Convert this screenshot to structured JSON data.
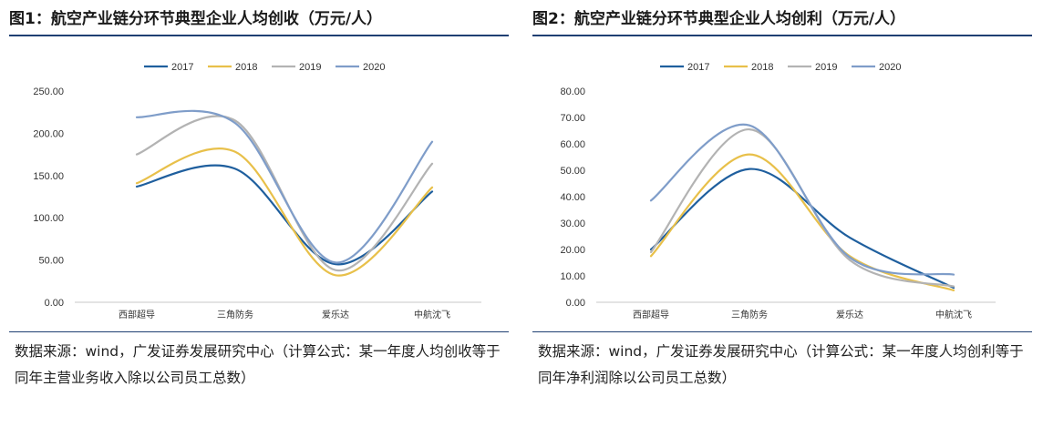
{
  "panels": [
    {
      "title": "图1：航空产业链分环节典型企业人均创收（万元/人）",
      "source": "数据来源：wind，广发证券发展研究中心（计算公式：某一年度人均创收等于同年主营业务收入除以公司员工总数）"
    },
    {
      "title": "图2：航空产业链分环节典型企业人均创利（万元/人）",
      "source": "数据来源：wind，广发证券发展研究中心（计算公式：某一年度人均创利等于同年净利润除以公司员工总数）"
    }
  ],
  "chart_data": [
    {
      "type": "line",
      "title": "图1：航空产业链分环节典型企业人均创收（万元/人）",
      "categories": [
        "西部超导",
        "三角防务",
        "爱乐达",
        "中航沈飞"
      ],
      "ylim": [
        0,
        250
      ],
      "yticks": [
        "0.00",
        "50.00",
        "100.00",
        "150.00",
        "200.00",
        "250.00"
      ],
      "grid": false,
      "legend_position": "top",
      "series": [
        {
          "name": "2017",
          "color": "#1f5f9e",
          "values": [
            137,
            158,
            45,
            131
          ]
        },
        {
          "name": "2018",
          "color": "#e8c04a",
          "values": [
            141,
            178,
            32,
            136
          ]
        },
        {
          "name": "2019",
          "color": "#b3b3b3",
          "values": [
            175,
            215,
            38,
            164
          ]
        },
        {
          "name": "2020",
          "color": "#7f9dc9",
          "values": [
            219,
            212,
            47,
            190
          ]
        }
      ]
    },
    {
      "type": "line",
      "title": "图2：航空产业链分环节典型企业人均创利（万元/人）",
      "categories": [
        "西部超导",
        "三角防务",
        "爱乐达",
        "中航沈飞"
      ],
      "ylim": [
        0,
        80
      ],
      "yticks": [
        "0.00",
        "10.00",
        "20.00",
        "30.00",
        "40.00",
        "50.00",
        "60.00",
        "70.00",
        "80.00"
      ],
      "grid": false,
      "legend_position": "top",
      "series": [
        {
          "name": "2017",
          "color": "#1f5f9e",
          "values": [
            20,
            50.5,
            24.5,
            5.5
          ]
        },
        {
          "name": "2018",
          "color": "#e8c04a",
          "values": [
            17.5,
            56,
            17.5,
            4.5
          ]
        },
        {
          "name": "2019",
          "color": "#b3b3b3",
          "values": [
            19,
            65.5,
            16,
            6
          ]
        },
        {
          "name": "2020",
          "color": "#7f9dc9",
          "values": [
            38.5,
            67,
            17,
            10.5
          ]
        }
      ]
    }
  ]
}
